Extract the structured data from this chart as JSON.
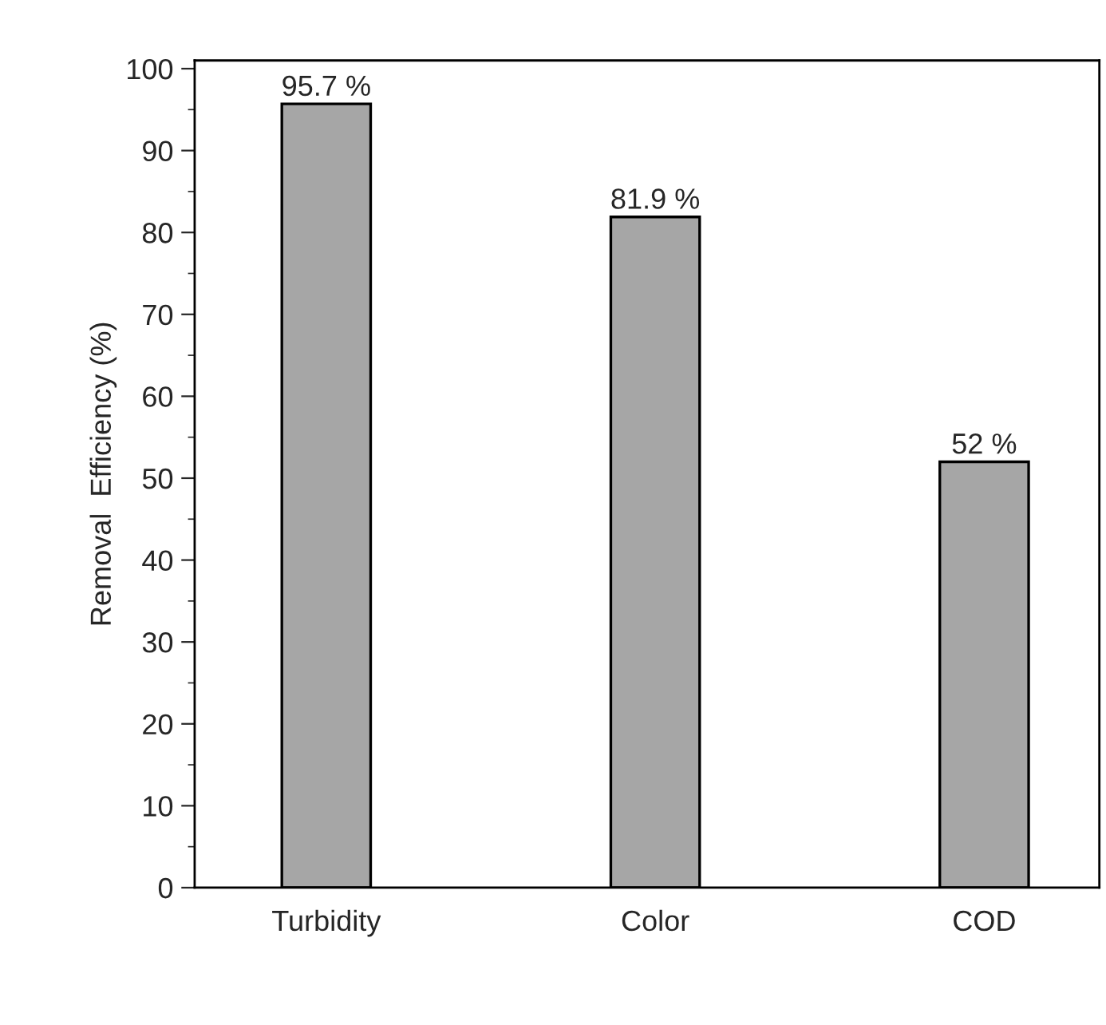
{
  "chart_data": {
    "type": "bar",
    "ylabel": "Removal  Efficiency (%)",
    "categories": [
      "Turbidity",
      "Color",
      "COD"
    ],
    "values": [
      95.7,
      81.9,
      52
    ],
    "value_labels": [
      "95.7 %",
      "81.9 %",
      "52 %"
    ],
    "color": "#a6a6a6",
    "ylim": [
      0,
      101
    ],
    "yticks": [
      0,
      10,
      20,
      30,
      40,
      50,
      60,
      70,
      80,
      90,
      100
    ],
    "grid": false
  }
}
